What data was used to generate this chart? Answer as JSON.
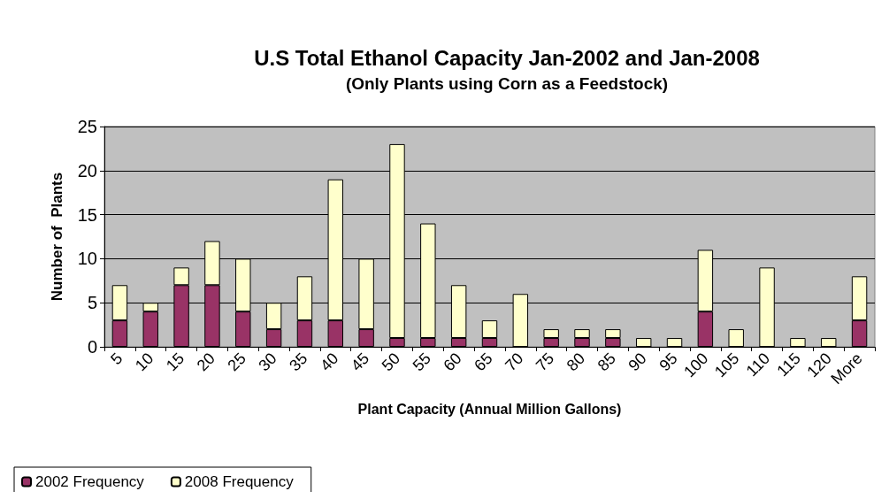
{
  "chart_data": {
    "type": "bar",
    "stacked": true,
    "title": "U.S Total Ethanol Capacity Jan-2002 and Jan-2008",
    "subtitle": "(Only Plants using Corn as a Feedstock)",
    "xlabel": "Plant Capacity (Annual Million Gallons)",
    "ylabel": "Number of  Plants",
    "categories": [
      "5",
      "10",
      "15",
      "20",
      "25",
      "30",
      "35",
      "40",
      "45",
      "50",
      "55",
      "60",
      "65",
      "70",
      "75",
      "80",
      "85",
      "90",
      "95",
      "100",
      "105",
      "110",
      "115",
      "120",
      "More"
    ],
    "series": [
      {
        "name": "2002 Frequency",
        "color": "#993366",
        "values": [
          3,
          4,
          7,
          7,
          4,
          2,
          3,
          3,
          2,
          1,
          1,
          1,
          1,
          0,
          1,
          1,
          1,
          0,
          0,
          4,
          0,
          0,
          0,
          0,
          3
        ]
      },
      {
        "name": "2008 Frequency",
        "color": "#ffffcc",
        "values": [
          4,
          1,
          2,
          5,
          6,
          3,
          5,
          16,
          8,
          22,
          13,
          6,
          2,
          6,
          1,
          1,
          1,
          1,
          1,
          7,
          2,
          9,
          1,
          1,
          5
        ]
      }
    ],
    "ylim": [
      0,
      25
    ],
    "yticks": [
      0,
      5,
      10,
      15,
      20,
      25
    ],
    "grid": "y",
    "legend": "bottom left"
  }
}
